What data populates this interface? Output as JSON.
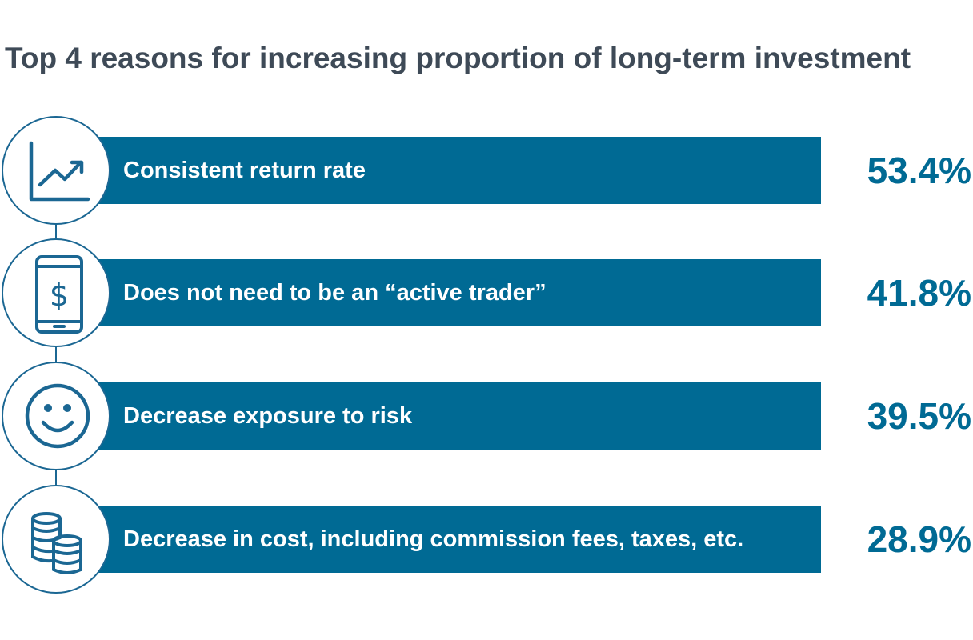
{
  "chart_data": {
    "type": "bar",
    "title": "Top 4 reasons for increasing proportion of long-term investment",
    "categories": [
      "Consistent return rate",
      "Does not need to be an “active trader”",
      "Decrease exposure to risk",
      "Decrease in cost, including commission fees, taxes, etc."
    ],
    "values": [
      53.4,
      41.8,
      39.5,
      28.9
    ],
    "value_labels": [
      "53.4%",
      "41.8%",
      "39.5%",
      "28.9%"
    ],
    "icons": [
      "line-chart-icon",
      "phone-dollar-icon",
      "smiley-face-icon",
      "coin-stack-icon"
    ],
    "colors": {
      "bar": "#006a94",
      "value_text": "#006a94",
      "icon_stroke": "#1b6793",
      "title_text": "#3e4a57"
    }
  }
}
